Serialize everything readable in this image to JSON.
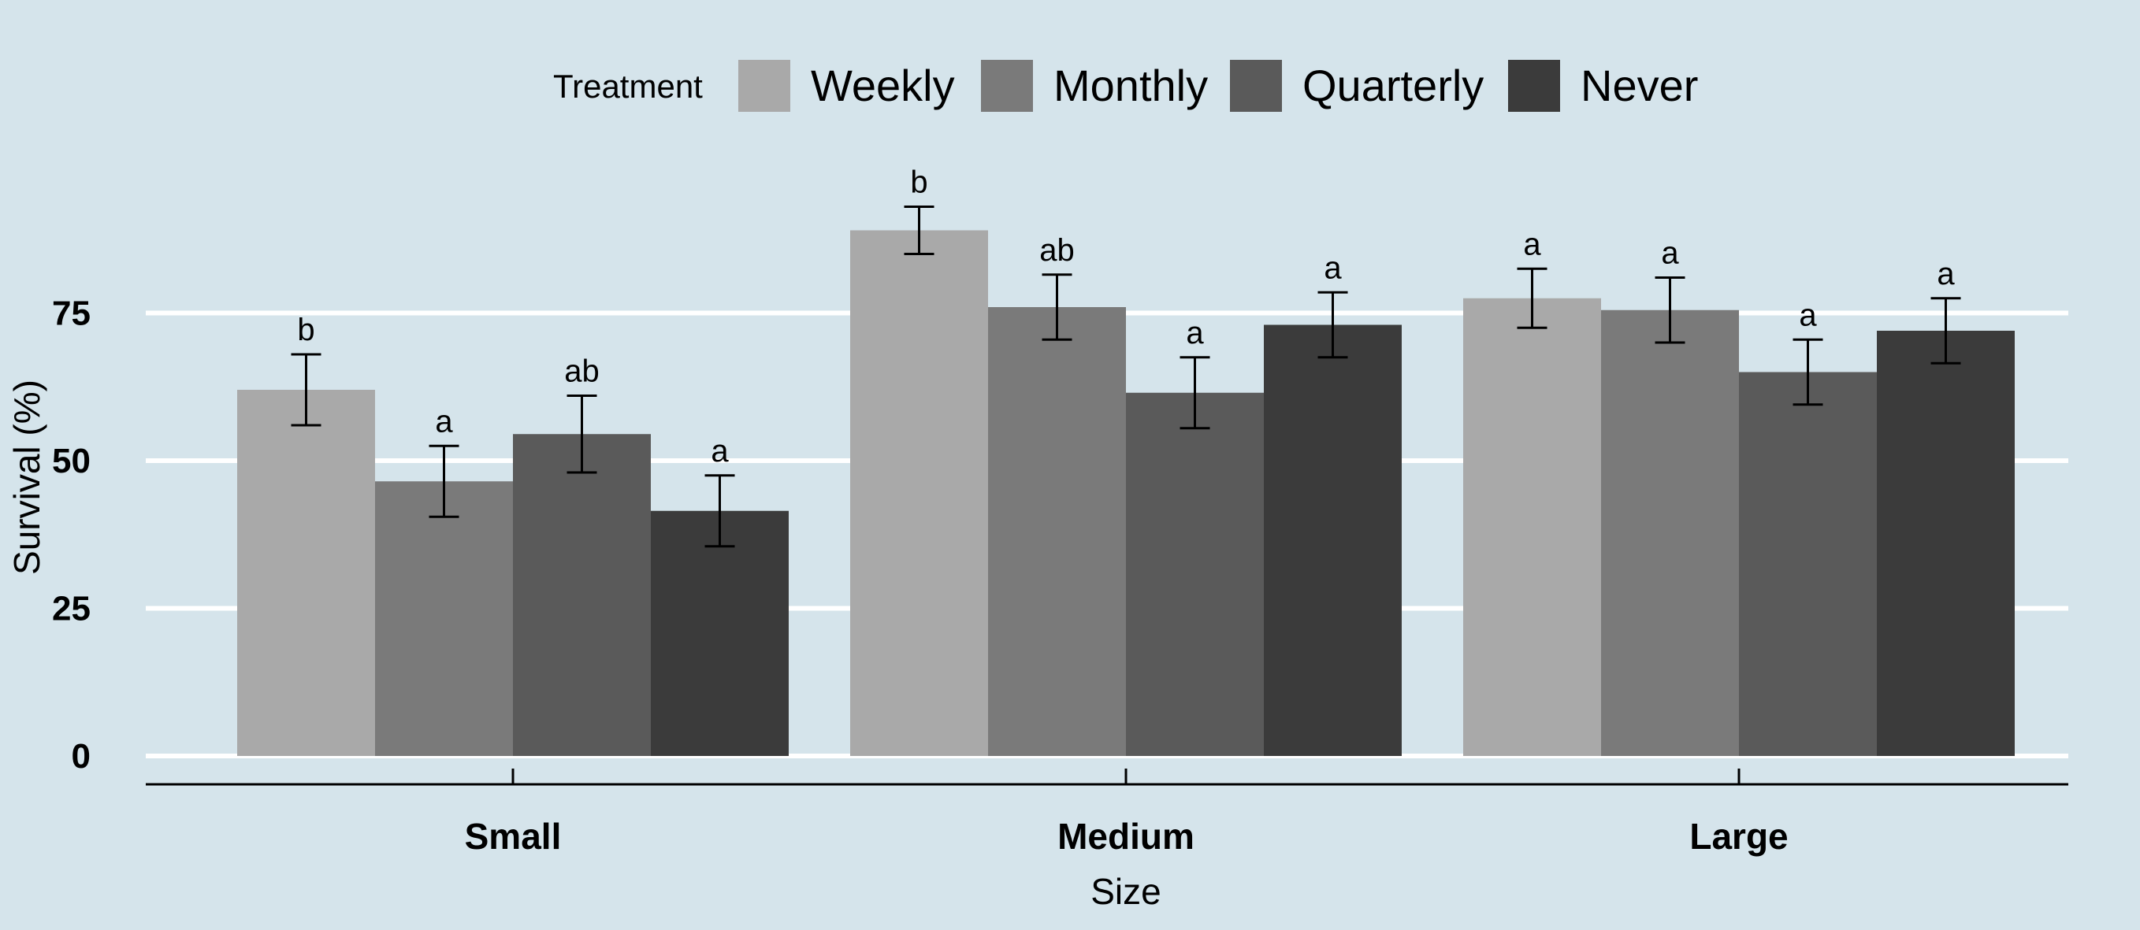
{
  "chart_data": {
    "type": "bar",
    "title": "",
    "xlabel": "Size",
    "ylabel": "Survival (%)",
    "ylim": [
      0,
      100
    ],
    "yticks": [
      0,
      25,
      50,
      75
    ],
    "grid": true,
    "legend": {
      "title": "Treatment",
      "position": "top"
    },
    "categories": [
      "Small",
      "Medium",
      "Large"
    ],
    "series": [
      {
        "name": "Weekly",
        "color": "#a9a9a9",
        "values": [
          62,
          89,
          77.5
        ],
        "errors": [
          6,
          4,
          5
        ],
        "labels": [
          "b",
          "b",
          "a"
        ]
      },
      {
        "name": "Monthly",
        "color": "#7a7a7a",
        "values": [
          46.5,
          76,
          75.5
        ],
        "errors": [
          6,
          5.5,
          5.5
        ],
        "labels": [
          "a",
          "ab",
          "a"
        ]
      },
      {
        "name": "Quarterly",
        "color": "#5a5a5a",
        "values": [
          54.5,
          61.5,
          65
        ],
        "errors": [
          6.5,
          6,
          5.5
        ],
        "labels": [
          "ab",
          "a",
          "a"
        ]
      },
      {
        "name": "Never",
        "color": "#3b3b3b",
        "values": [
          41.5,
          73,
          72
        ],
        "errors": [
          6,
          5.5,
          5.5
        ],
        "labels": [
          "a",
          "a",
          "a"
        ]
      }
    ]
  }
}
